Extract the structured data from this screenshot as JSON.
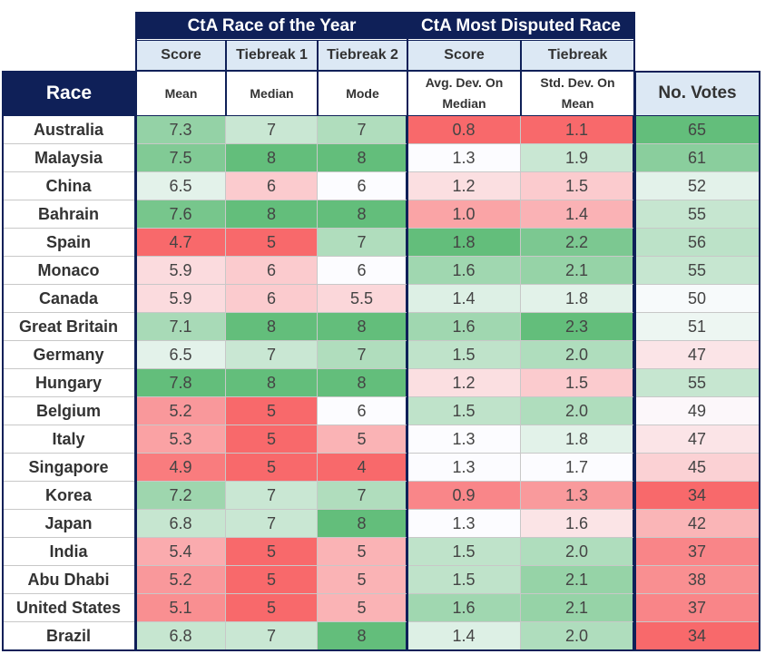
{
  "header": {
    "group_race_of_year": "CtA Race of the Year",
    "group_disputed": "CtA Most Disputed Race",
    "sub_score_1": "Score",
    "sub_tiebreak_1": "Tiebreak 1",
    "sub_tiebreak_2": "Tiebreak 2",
    "sub_score_2": "Score",
    "sub_tiebreak": "Tiebreak",
    "race": "Race",
    "mean": "Mean",
    "median": "Median",
    "mode": "Mode",
    "avg_dev_line1": "Avg. Dev. On",
    "avg_dev_line2": "Median",
    "std_dev_line1": "Std. Dev. On",
    "std_dev_line2": "Mean",
    "votes": "No. Votes"
  },
  "colors": {
    "navy": "#0f2058",
    "header_light": "#dce8f4",
    "scale_low": "#f8696b",
    "scale_mid": "#fcfcff",
    "scale_high": "#63be7b"
  },
  "rows": [
    {
      "race": "Australia",
      "mean": "7.3",
      "median": "7",
      "mode": "7",
      "avg_dev": "0.8",
      "std_dev": "1.1",
      "votes": "65"
    },
    {
      "race": "Malaysia",
      "mean": "7.5",
      "median": "8",
      "mode": "8",
      "avg_dev": "1.3",
      "std_dev": "1.9",
      "votes": "61"
    },
    {
      "race": "China",
      "mean": "6.5",
      "median": "6",
      "mode": "6",
      "avg_dev": "1.2",
      "std_dev": "1.5",
      "votes": "52"
    },
    {
      "race": "Bahrain",
      "mean": "7.6",
      "median": "8",
      "mode": "8",
      "avg_dev": "1.0",
      "std_dev": "1.4",
      "votes": "55"
    },
    {
      "race": "Spain",
      "mean": "4.7",
      "median": "5",
      "mode": "7",
      "avg_dev": "1.8",
      "std_dev": "2.2",
      "votes": "56"
    },
    {
      "race": "Monaco",
      "mean": "5.9",
      "median": "6",
      "mode": "6",
      "avg_dev": "1.6",
      "std_dev": "2.1",
      "votes": "55"
    },
    {
      "race": "Canada",
      "mean": "5.9",
      "median": "6",
      "mode": "5.5",
      "avg_dev": "1.4",
      "std_dev": "1.8",
      "votes": "50"
    },
    {
      "race": "Great Britain",
      "mean": "7.1",
      "median": "8",
      "mode": "8",
      "avg_dev": "1.6",
      "std_dev": "2.3",
      "votes": "51"
    },
    {
      "race": "Germany",
      "mean": "6.5",
      "median": "7",
      "mode": "7",
      "avg_dev": "1.5",
      "std_dev": "2.0",
      "votes": "47"
    },
    {
      "race": "Hungary",
      "mean": "7.8",
      "median": "8",
      "mode": "8",
      "avg_dev": "1.2",
      "std_dev": "1.5",
      "votes": "55"
    },
    {
      "race": "Belgium",
      "mean": "5.2",
      "median": "5",
      "mode": "6",
      "avg_dev": "1.5",
      "std_dev": "2.0",
      "votes": "49"
    },
    {
      "race": "Italy",
      "mean": "5.3",
      "median": "5",
      "mode": "5",
      "avg_dev": "1.3",
      "std_dev": "1.8",
      "votes": "47"
    },
    {
      "race": "Singapore",
      "mean": "4.9",
      "median": "5",
      "mode": "4",
      "avg_dev": "1.3",
      "std_dev": "1.7",
      "votes": "45"
    },
    {
      "race": "Korea",
      "mean": "7.2",
      "median": "7",
      "mode": "7",
      "avg_dev": "0.9",
      "std_dev": "1.3",
      "votes": "34"
    },
    {
      "race": "Japan",
      "mean": "6.8",
      "median": "7",
      "mode": "8",
      "avg_dev": "1.3",
      "std_dev": "1.6",
      "votes": "42"
    },
    {
      "race": "India",
      "mean": "5.4",
      "median": "5",
      "mode": "5",
      "avg_dev": "1.5",
      "std_dev": "2.0",
      "votes": "37"
    },
    {
      "race": "Abu Dhabi",
      "mean": "5.2",
      "median": "5",
      "mode": "5",
      "avg_dev": "1.5",
      "std_dev": "2.1",
      "votes": "38"
    },
    {
      "race": "United States",
      "mean": "5.1",
      "median": "5",
      "mode": "5",
      "avg_dev": "1.6",
      "std_dev": "2.1",
      "votes": "37"
    },
    {
      "race": "Brazil",
      "mean": "6.8",
      "median": "7",
      "mode": "8",
      "avg_dev": "1.4",
      "std_dev": "2.0",
      "votes": "34"
    }
  ]
}
